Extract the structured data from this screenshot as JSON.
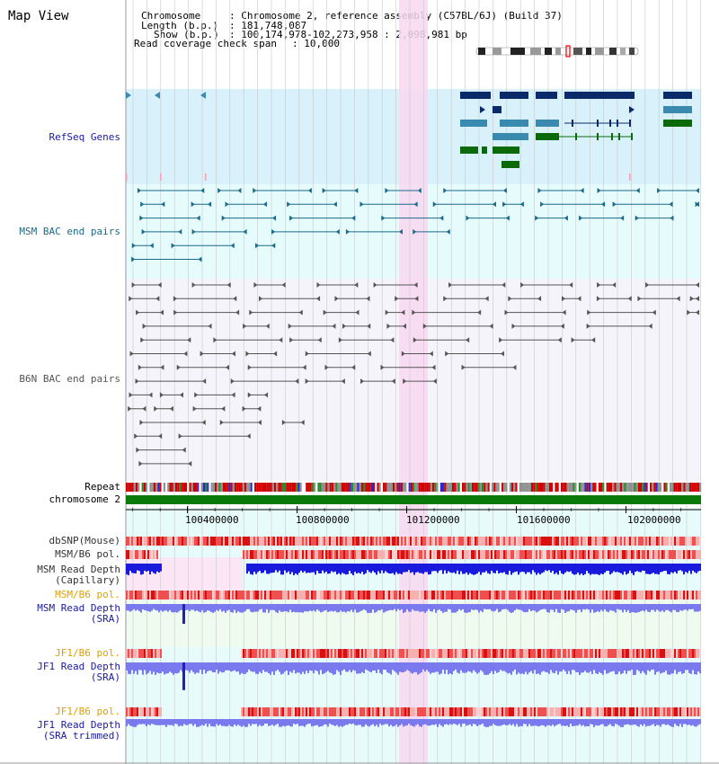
{
  "page_title": "Map View",
  "info": {
    "chromosome_label": "Chromosome",
    "chromosome_value": ": Chromosome 2, reference assembly (C57BL/6J) (Build 37)",
    "length_label": "Length (b.p.)",
    "length_value": ": 181,748,087",
    "show_label": "Show (b.p.)",
    "show_value": ": 100,174,978-102,273,958 : 2,098,981 bp",
    "coverage_label": "Read coverage check span",
    "coverage_value": ": 10,000"
  },
  "tracks": {
    "refseq": "RefSeq Genes",
    "msm_bac": "MSM BAC end pairs",
    "b6n_bac": "B6N BAC end pairs",
    "repeat": "Repeat",
    "chromosome": "chromosome 2"
  },
  "axis": {
    "start": 100174978,
    "end": 102273958,
    "ticks": [
      "100400000",
      "100800000",
      "101200000",
      "101600000",
      "102000000"
    ]
  },
  "lower_tracks": [
    {
      "line1": "dbSNP(Mouse)",
      "line2": "",
      "color": "#333333",
      "kind": "snp"
    },
    {
      "line1": "MSM/B6 pol.",
      "line2": "",
      "color": "#333333",
      "kind": "pol"
    },
    {
      "line1": "MSM Read Depth",
      "line2": "(Capillary)",
      "color": "#333333",
      "kind": "depth"
    },
    {
      "line1": "MSM/B6 pol.",
      "line2": "",
      "color": "#e0a000",
      "kind": "pol"
    },
    {
      "line1": "MSM Read Depth",
      "line2": "(SRA)",
      "color": "#1a1aa0",
      "kind": "depth"
    },
    {
      "line1": "JF1/B6 pol.",
      "line2": "",
      "color": "#e0a000",
      "kind": "pol"
    },
    {
      "line1": "JF1 Read Depth",
      "line2": "(SRA)",
      "color": "#1a1aa0",
      "kind": "depth"
    },
    {
      "line1": "JF1/B6 pol.",
      "line2": "",
      "color": "#e0a000",
      "kind": "pol"
    },
    {
      "line1": "JF1 Read Depth",
      "line2": "(SRA trimmed)",
      "color": "#1a1aa0",
      "kind": "depth"
    }
  ],
  "colors": {
    "refseq_bg": "#d9f1fb",
    "msm_bg": "#e6fbfb",
    "b6n_bg": "#f4f4fa",
    "highlight": "#f8d8f0",
    "refseq_label": "#1a1aa0",
    "msm_label": "#1a6a8a",
    "b6n_label": "#555555",
    "gene_dark": "#0a2a6a",
    "gene_mid": "#3a8ab0",
    "gene_green": "#0a6a0a",
    "msm_pair": "#1a6a8a",
    "b6n_pair": "#555555",
    "chromosome_bar": "#0a7a0a",
    "depth_dark": "#1a1adc",
    "depth_light": "#7a7aee"
  }
}
